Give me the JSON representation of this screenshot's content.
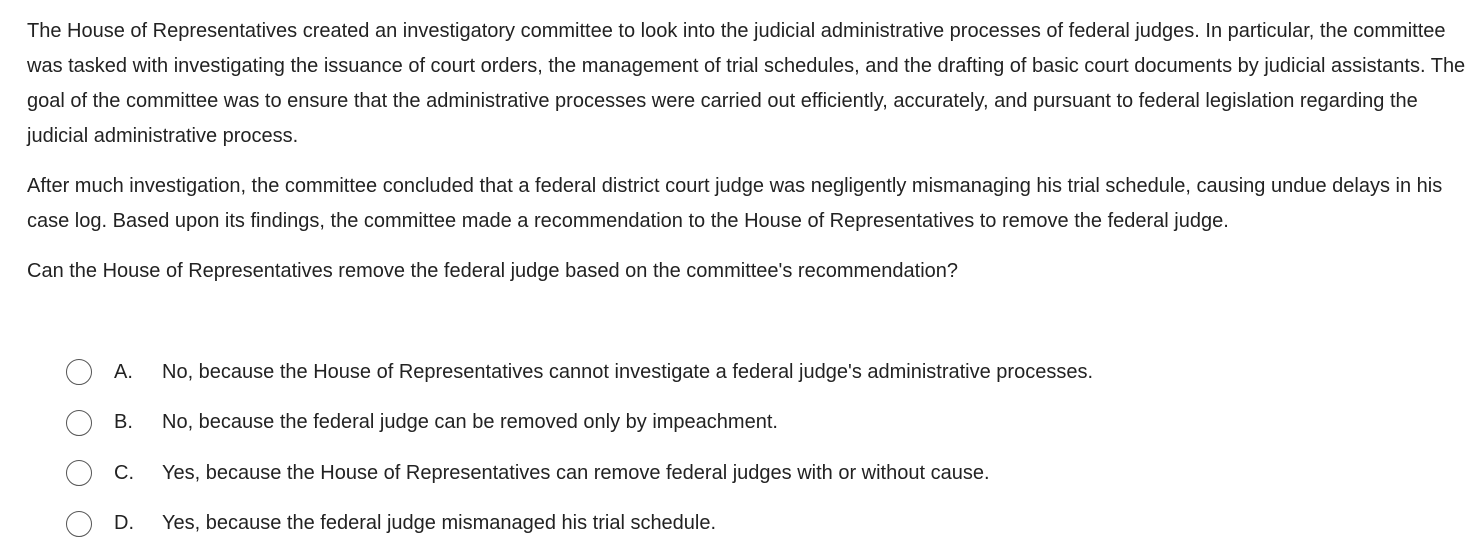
{
  "passage": [
    "The House of Representatives created an investigatory committee to look into the judicial administrative processes of federal judges.  In particular, the committee was tasked with investigating the issuance of court orders, the management of trial schedules, and the drafting of basic court documents by judicial assistants.  The goal of the committee was to ensure that the administrative processes were carried out efficiently, accurately, and pursuant to federal legislation regarding the judicial administrative process.",
    "After much investigation, the committee concluded that a federal district court judge was negligently mismanaging his trial schedule, causing undue delays in his case log.  Based upon its findings, the committee made a recommendation to the House of Representatives to remove the federal judge."
  ],
  "prompt": "Can the House of Representatives remove the federal judge based on the committee's recommendation?",
  "options": [
    {
      "letter": "A.",
      "text": "No, because the House of Representatives cannot investigate a federal judge's administrative processes."
    },
    {
      "letter": "B.",
      "text": "No, because the federal judge can be removed only by impeachment."
    },
    {
      "letter": "C.",
      "text": "Yes, because the House of Representatives can remove federal judges with or without cause."
    },
    {
      "letter": "D.",
      "text": "Yes, because the federal judge mismanaged his trial schedule."
    }
  ]
}
